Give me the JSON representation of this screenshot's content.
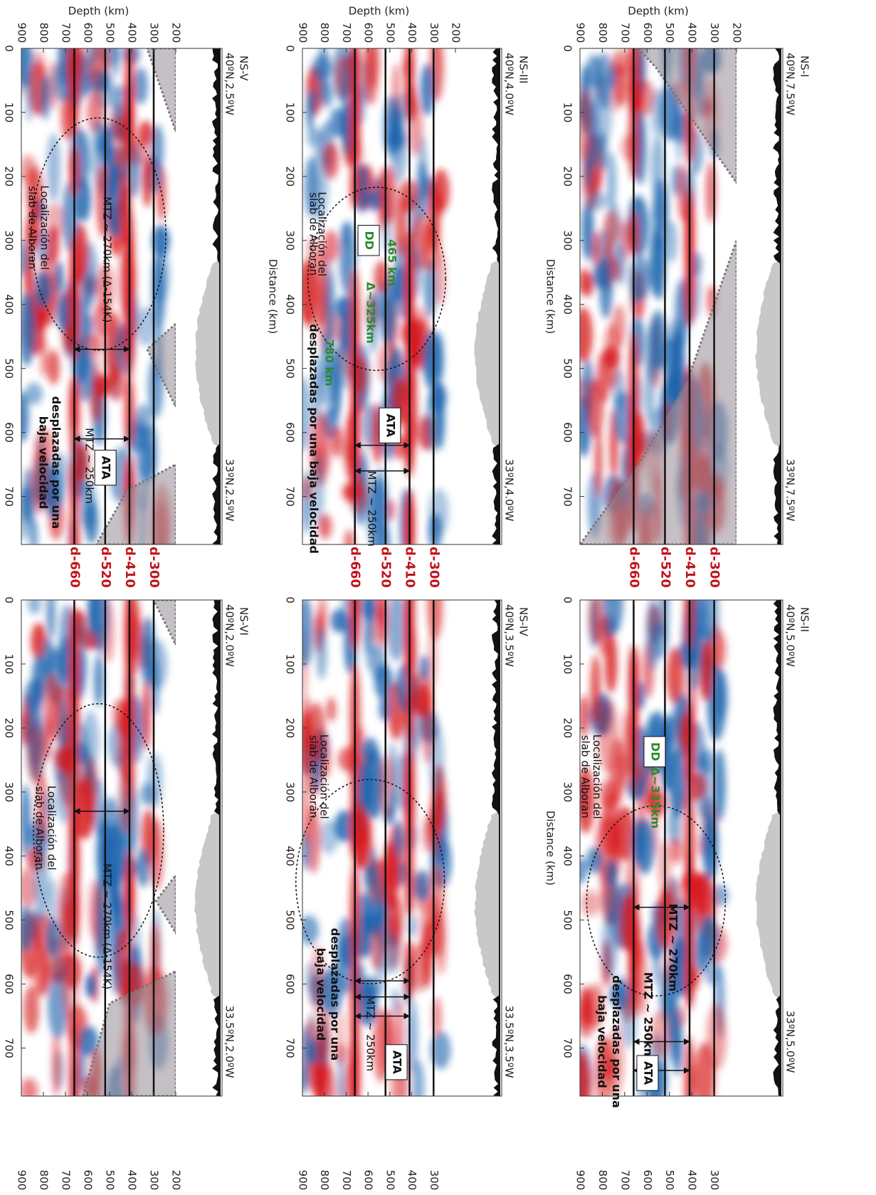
{
  "chart_data": [
    {
      "type": "section",
      "title": "NS-I",
      "corner_labels": [
        "40ºN,7.5ºW",
        "33ºN,7.5ºW"
      ],
      "x_label": "Distance (km)",
      "y_label": "Depth (km)",
      "xlim": [
        0,
        775
      ],
      "ylim": [
        200,
        900
      ],
      "xticks": [
        0,
        100,
        200,
        300,
        400,
        500,
        600,
        700
      ],
      "yticks": [
        200,
        300,
        400,
        500,
        600,
        700,
        800,
        900
      ],
      "ref_lines": [
        300,
        410,
        520,
        660
      ],
      "ref_labels": [
        "d-300",
        "d-410",
        "d-520",
        "d-660"
      ],
      "annotations": []
    },
    {
      "type": "section",
      "title": "NS-II",
      "corner_labels": [
        "40ºN,5.0ºW",
        "33ºN,5.0ºW"
      ],
      "x_label": "Distance (km)",
      "xlim": [
        0,
        775
      ],
      "ylim": [
        200,
        900
      ],
      "xticks": [
        0,
        100,
        200,
        300,
        400,
        500,
        600,
        700
      ],
      "yticks": [
        300,
        400,
        500,
        600,
        700,
        800,
        900
      ],
      "ref_lines": [
        300,
        410,
        520,
        660
      ],
      "annotations": [
        "DD",
        "Localización del",
        "slab de Alboran",
        "Δ~335km",
        "MTZ ~ 270km",
        "MTZ ~ 250km",
        "desplazadas por una",
        "baja velocidad",
        "ATA"
      ]
    },
    {
      "type": "section",
      "title": "NS-III",
      "corner_labels": [
        "40ºN,4.0ºW",
        "33ºN,4.0ºW"
      ],
      "x_label": "Distance (km)",
      "y_label": "Depth (km)",
      "xlim": [
        0,
        775
      ],
      "ylim": [
        200,
        900
      ],
      "xticks": [
        0,
        100,
        200,
        300,
        400,
        500,
        600,
        700
      ],
      "yticks": [
        200,
        300,
        400,
        500,
        600,
        700,
        800,
        900
      ],
      "ref_lines": [
        300,
        410,
        520,
        660
      ],
      "ref_labels": [
        "d-300",
        "d-410",
        "d-520",
        "d-660"
      ],
      "annotations": [
        "DD",
        "465 km",
        "Δ~325km",
        "780 km",
        "Localización del",
        "slab de Alboran",
        "desplazadas por una baja velocidad",
        "ATA",
        "MTZ ~ 250km"
      ]
    },
    {
      "type": "section",
      "title": "NS-IV",
      "corner_labels": [
        "40ºN,3.5ºW",
        "33.5ºN,3.5ºW"
      ],
      "xlim": [
        0,
        775
      ],
      "ylim": [
        200,
        900
      ],
      "xticks": [
        0,
        100,
        200,
        300,
        400,
        500,
        600,
        700
      ],
      "yticks": [
        300,
        400,
        500,
        600,
        700,
        800,
        900
      ],
      "ref_lines": [
        300,
        410,
        520,
        660
      ],
      "annotations": [
        "Localización del",
        "slab de Alboran",
        "desplazadas por una",
        "baja velocidad",
        "MTZ ~ 250km",
        "ATA"
      ]
    },
    {
      "type": "section",
      "title": "NS-V",
      "corner_labels": [
        "40ºN,2.5ºW",
        "33ºN,2.5ºW"
      ],
      "y_label": "Depth (km)",
      "xlim": [
        0,
        775
      ],
      "ylim": [
        200,
        900
      ],
      "xticks": [
        0,
        100,
        200,
        300,
        400,
        500,
        600,
        700
      ],
      "yticks": [
        200,
        300,
        400,
        500,
        600,
        700,
        800,
        900
      ],
      "ref_lines": [
        300,
        410,
        520,
        660
      ],
      "ref_labels": [
        "d-300",
        "d-410",
        "d-520",
        "d-660"
      ],
      "annotations": [
        "MTZ ~ 270km (Δ-154K)",
        "Localización del",
        "slab de Alboran",
        "MTZ ~ 250km",
        "ATA",
        "desplazadas por una",
        "baja velocidad"
      ]
    },
    {
      "type": "section",
      "title": "NS-VI",
      "corner_labels": [
        "40ºN,2.0ºW",
        "33.5ºN,2.0ºW"
      ],
      "xlim": [
        0,
        775
      ],
      "ylim": [
        200,
        900
      ],
      "xticks": [
        0,
        100,
        200,
        300,
        400,
        500,
        600,
        700
      ],
      "yticks": [
        200,
        300,
        400,
        500,
        600,
        700,
        800,
        900
      ],
      "ref_lines": [
        300,
        410,
        520,
        660
      ],
      "annotations": [
        "MTZ ~ 270km (Δ-154K)",
        "Localización del",
        "slab de Alboran"
      ]
    }
  ]
}
